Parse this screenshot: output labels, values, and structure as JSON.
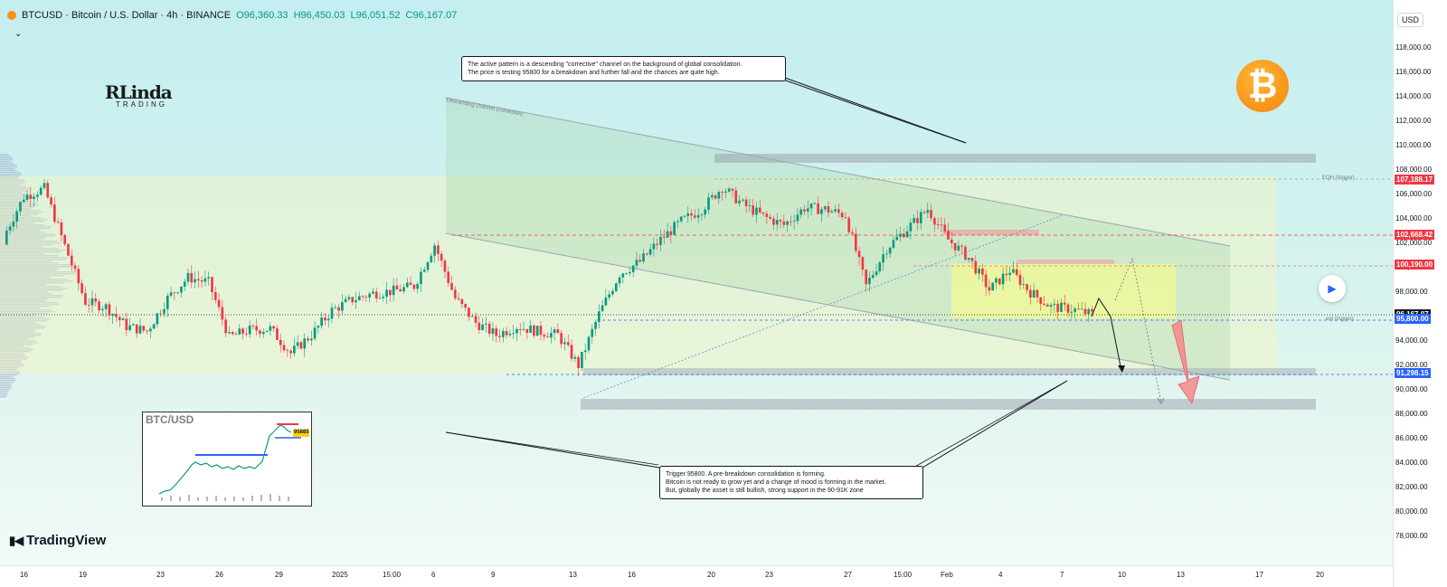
{
  "header": {
    "symbol": "BTCUSD · Bitcoin / U.S. Dollar · 4h · BINANCE",
    "open": "O96,360.33",
    "high": "H96,450.03",
    "low": "L96,051.52",
    "close": "C96,167.07"
  },
  "currency": "USD",
  "branding": {
    "tradingview": "TradingView",
    "logo_main": "RLinda",
    "logo_sub": "TRADING"
  },
  "colors": {
    "up": "#089981",
    "down": "#f23645",
    "accent": "#2962ff",
    "bitcoin": "#f7931a"
  },
  "callouts": {
    "top_line1": "The active pattern is a descending \"corrective\" channel on the background of global consolidation.",
    "top_line2": "The price is testing 95800 for a breakdown and further fall and the chances are quite high.",
    "bottom_line1": "Trigger 95800. A pre-breakdown consolidation is forming.",
    "bottom_line2": "Bitcoin is not ready to grow yet and a change of mood is forming in the market.",
    "bottom_line3": "But, globally the asset is still bullish, strong support in the 90-91K zone"
  },
  "annotations": {
    "channel": "Descending channel (correction)",
    "eqh": "EQH (trigger)",
    "eql": "eql (trigger)"
  },
  "inset": {
    "title": "BTC/USD",
    "tag": "95885"
  },
  "chart_data": {
    "type": "candlestick",
    "symbol": "BTCUSD",
    "timeframe": "4h",
    "ylim": [
      76500,
      120000
    ],
    "ytick_values": [
      78000,
      80000,
      82000,
      84000,
      86000,
      88000,
      90000,
      92000,
      94000,
      96000,
      98000,
      100000,
      102000,
      104000,
      106000,
      108000,
      110000,
      112000,
      114000,
      116000,
      118000
    ],
    "ytick_labels": [
      "78,000.00",
      "80,000.00",
      "82,000.00",
      "84,000.00",
      "86,000.00",
      "88,000.00",
      "90,000.00",
      "92,000.00",
      "94,000.00",
      "96,000.00",
      "98,000.00",
      "100,000.00",
      "102,000.00",
      "104,000.00",
      "106,000.00",
      "108,000.00",
      "110,000.00",
      "112,000.00",
      "114,000.00",
      "116,000.00",
      "118,000.00"
    ],
    "x_labels": [
      "16",
      "19",
      "23",
      "26",
      "29",
      "2025",
      "15:00",
      "6",
      "9",
      "13",
      "16",
      "20",
      "23",
      "27",
      "15:00",
      "Feb",
      "4",
      "7",
      "10",
      "13",
      "17",
      "20"
    ],
    "price_tags": [
      {
        "value": 107188.17,
        "label": "107,188.17",
        "color": "#f23645"
      },
      {
        "value": 102668.42,
        "label": "102,668.42",
        "color": "#f23645"
      },
      {
        "value": 100190.0,
        "label": "100,190.00",
        "color": "#f23645"
      },
      {
        "value": 96167.07,
        "label": "96,167.07",
        "color": "#131722"
      },
      {
        "value": 95800.0,
        "label": "95,800.00",
        "color": "#2962ff"
      },
      {
        "value": 91298.15,
        "label": "91,298.15",
        "color": "#2962ff"
      }
    ],
    "levels": {
      "eqh": 107188.17,
      "liquidity_high": 102668.42,
      "range_high": 100190.0,
      "last": 96167.07,
      "trigger": 95800.0,
      "support": 91298.15
    },
    "series_close": [
      {
        "x": "16",
        "close": 102500
      },
      {
        "x": "17",
        "close": 105800
      },
      {
        "x": "18",
        "close": 106500
      },
      {
        "x": "19",
        "close": 101800
      },
      {
        "x": "20",
        "close": 97200
      },
      {
        "x": "21",
        "close": 96800
      },
      {
        "x": "22",
        "close": 95200
      },
      {
        "x": "23",
        "close": 94800
      },
      {
        "x": "24",
        "close": 97500
      },
      {
        "x": "25",
        "close": 99200
      },
      {
        "x": "26",
        "close": 98800
      },
      {
        "x": "27",
        "close": 94300
      },
      {
        "x": "28",
        "close": 94900
      },
      {
        "x": "29",
        "close": 95000
      },
      {
        "x": "30",
        "close": 93000
      },
      {
        "x": "31",
        "close": 94500
      },
      {
        "x": "1",
        "close": 96500
      },
      {
        "x": "2",
        "close": 97400
      },
      {
        "x": "3",
        "close": 97900
      },
      {
        "x": "4",
        "close": 98100
      },
      {
        "x": "5",
        "close": 98500
      },
      {
        "x": "6",
        "close": 101900
      },
      {
        "x": "7",
        "close": 97500
      },
      {
        "x": "8",
        "close": 95500
      },
      {
        "x": "9",
        "close": 94500
      },
      {
        "x": "10",
        "close": 95200
      },
      {
        "x": "11",
        "close": 94800
      },
      {
        "x": "12",
        "close": 94500
      },
      {
        "x": "13",
        "close": 92000
      },
      {
        "x": "14",
        "close": 96200
      },
      {
        "x": "15",
        "close": 99500
      },
      {
        "x": "16",
        "close": 100500
      },
      {
        "x": "17",
        "close": 102300
      },
      {
        "x": "18",
        "close": 103800
      },
      {
        "x": "19",
        "close": 104800
      },
      {
        "x": "20",
        "close": 106600
      },
      {
        "x": "21",
        "close": 105200
      },
      {
        "x": "22",
        "close": 104200
      },
      {
        "x": "23",
        "close": 103500
      },
      {
        "x": "24",
        "close": 104900
      },
      {
        "x": "25",
        "close": 104800
      },
      {
        "x": "26",
        "close": 104300
      },
      {
        "x": "27",
        "close": 98500
      },
      {
        "x": "28",
        "close": 101600
      },
      {
        "x": "29",
        "close": 103200
      },
      {
        "x": "30",
        "close": 104800
      },
      {
        "x": "31",
        "close": 102300
      },
      {
        "x": "Feb 1",
        "close": 100800
      },
      {
        "x": "2",
        "close": 98200
      },
      {
        "x": "3",
        "close": 99800
      },
      {
        "x": "4",
        "close": 98000
      },
      {
        "x": "5",
        "close": 96800
      },
      {
        "x": "6",
        "close": 96600
      },
      {
        "x": "7",
        "close": 96167
      }
    ]
  }
}
